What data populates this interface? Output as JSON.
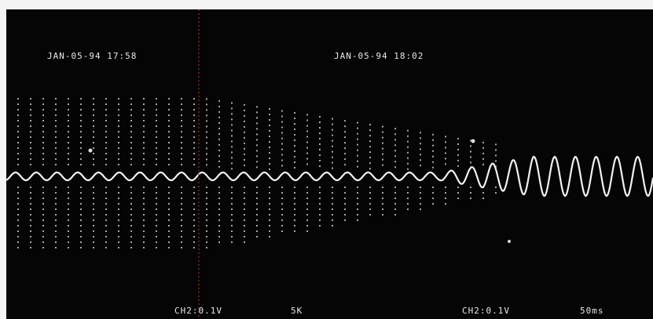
{
  "display": {
    "timestamps": [
      "JAN-05-94 17:58",
      "JAN-05-94 18:02"
    ],
    "footer": [
      "CH2:0.1V",
      "5K",
      "CH2:0.1V",
      "50ms"
    ]
  }
}
